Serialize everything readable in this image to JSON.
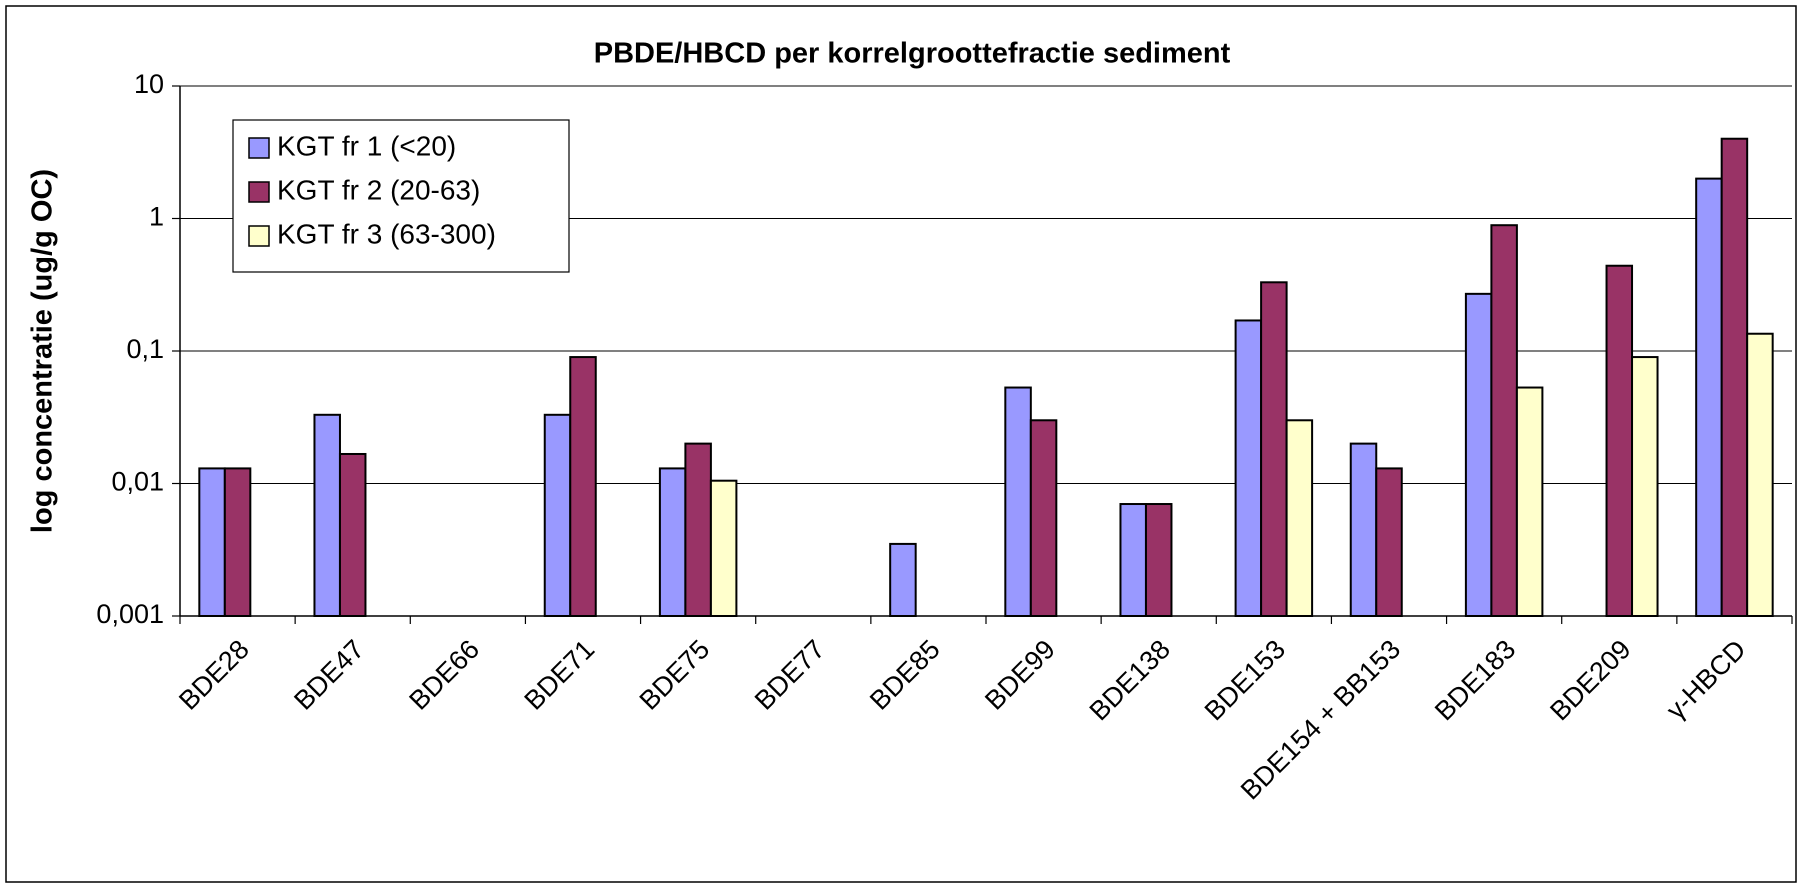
{
  "chart_data": {
    "type": "bar",
    "title": "PBDE/HBCD per korrelgroottefractie sediment",
    "y_label": "log concentratie (ug/g OC)",
    "log_scale": true,
    "grid": true,
    "legend_position": "upper left",
    "categories": [
      "BDE28",
      "BDE47",
      "BDE66",
      "BDE71",
      "BDE75",
      "BDE77",
      "BDE85",
      "BDE99",
      "BDE138",
      "BDE153",
      "BDE154 + BB153",
      "BDE183",
      "BDE209",
      "γ-HBCD"
    ],
    "series": [
      {
        "name": "KGT fr 1 (<20)",
        "color": "#9999ff",
        "values": [
          0.013,
          0.033,
          null,
          0.033,
          0.013,
          null,
          0.0035,
          0.053,
          0.007,
          0.17,
          0.02,
          0.27,
          null,
          2.0
        ]
      },
      {
        "name": "KGT fr 2 (20-63)",
        "color": "#993366",
        "values": [
          0.013,
          0.0167,
          null,
          0.09,
          0.02,
          null,
          null,
          0.03,
          0.007,
          0.33,
          0.013,
          0.89,
          0.44,
          4.0
        ]
      },
      {
        "name": "KGT fr 3 (63-300)",
        "color": "#ffffcc",
        "values": [
          null,
          null,
          null,
          null,
          0.0105,
          null,
          null,
          null,
          null,
          0.03,
          null,
          0.053,
          0.09,
          0.135
        ]
      }
    ],
    "ylim": [
      0.001,
      10
    ],
    "yticks": [
      {
        "value": 0.001,
        "label": "0,001"
      },
      {
        "value": 0.01,
        "label": "0,01"
      },
      {
        "value": 0.1,
        "label": "0,1"
      },
      1,
      10
    ]
  }
}
